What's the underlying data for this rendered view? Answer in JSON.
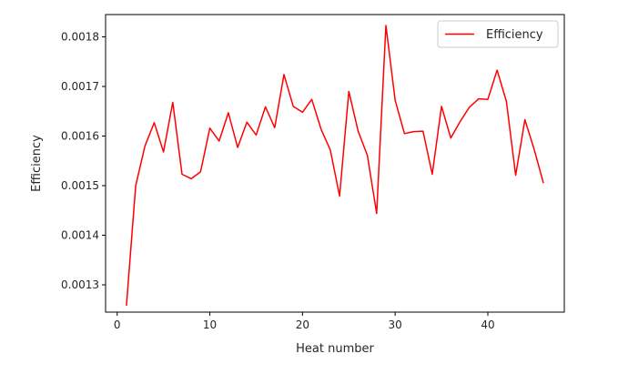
{
  "chart_data": {
    "type": "line",
    "xlabel": "Heat number",
    "ylabel": "Efficiency",
    "xlim": [
      -1.25,
      48.25
    ],
    "ylim": [
      0.001245,
      0.001845
    ],
    "x_ticks": [
      0,
      10,
      20,
      30,
      40
    ],
    "y_ticks": [
      0.0013,
      0.0014,
      0.0015,
      0.0016,
      0.0017,
      0.0018
    ],
    "x_tick_labels": [
      "0",
      "10",
      "20",
      "30",
      "40"
    ],
    "y_tick_labels": [
      "0.0013",
      "0.0014",
      "0.0015",
      "0.0016",
      "0.0017",
      "0.0018"
    ],
    "grid": false,
    "legend_position": "upper-right",
    "series": [
      {
        "name": "Efficiency",
        "color": "#ff0000",
        "x": [
          1,
          2,
          3,
          4,
          5,
          6,
          7,
          8,
          9,
          10,
          11,
          12,
          13,
          14,
          15,
          16,
          17,
          18,
          19,
          20,
          21,
          22,
          23,
          24,
          25,
          26,
          27,
          28,
          29,
          30,
          31,
          32,
          33,
          34,
          35,
          36,
          37,
          38,
          39,
          40,
          41,
          42,
          43,
          44,
          45,
          46
        ],
        "y": [
          0.001258,
          0.0015,
          0.00158,
          0.001627,
          0.001568,
          0.001668,
          0.001523,
          0.001514,
          0.001528,
          0.001616,
          0.00159,
          0.001647,
          0.001577,
          0.001628,
          0.001602,
          0.001659,
          0.001617,
          0.001724,
          0.00166,
          0.001648,
          0.001674,
          0.001614,
          0.001572,
          0.001479,
          0.00169,
          0.00161,
          0.001561,
          0.001444,
          0.001823,
          0.001672,
          0.001605,
          0.001609,
          0.00161,
          0.001523,
          0.00166,
          0.001596,
          0.001629,
          0.001658,
          0.001675,
          0.001674,
          0.001733,
          0.00167,
          0.001521,
          0.001633,
          0.001573,
          0.001505
        ]
      }
    ]
  }
}
